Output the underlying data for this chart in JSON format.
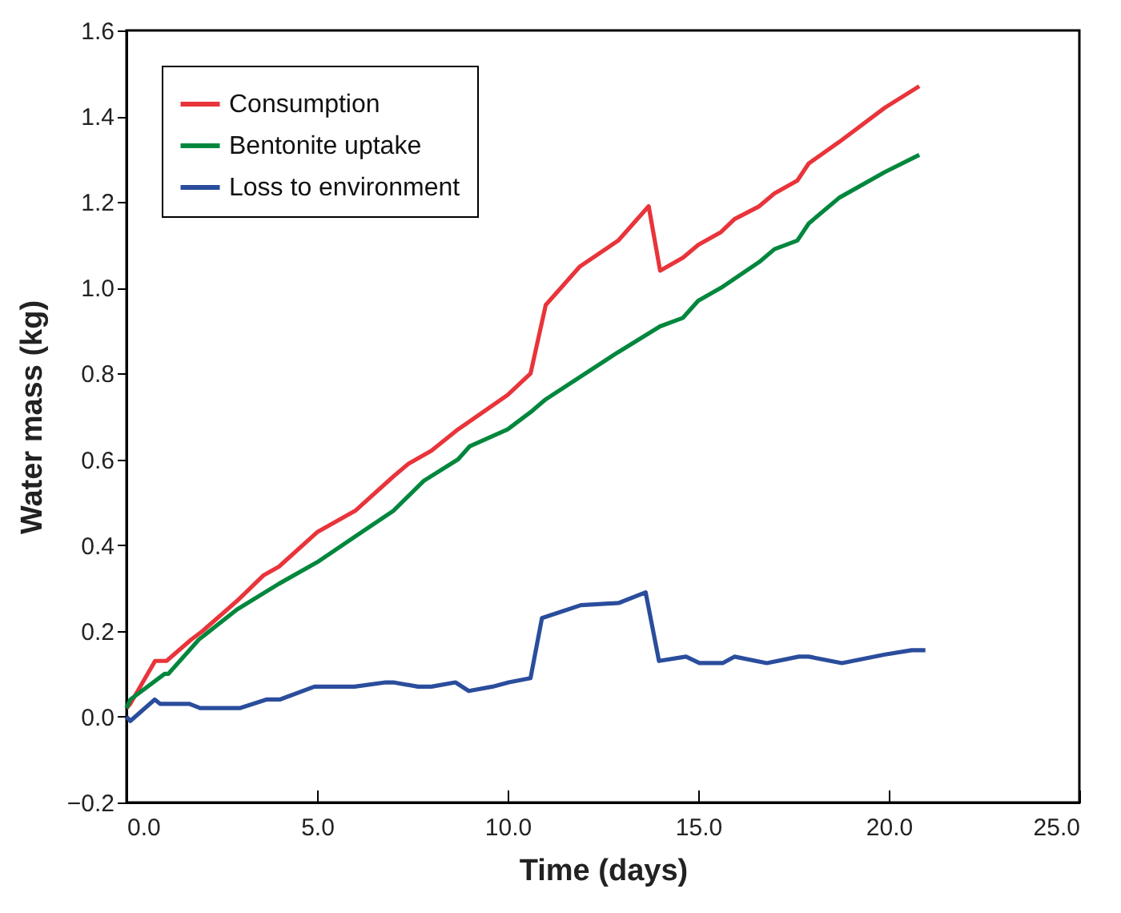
{
  "chart_data": {
    "type": "line",
    "xlabel": "Time (days)",
    "ylabel": "Water mass (kg)",
    "xlim": [
      0,
      25
    ],
    "ylim": [
      -0.2,
      1.6
    ],
    "xticks": [
      {
        "value": 0,
        "label": "0.0"
      },
      {
        "value": 5,
        "label": "5.0"
      },
      {
        "value": 10,
        "label": "10.0"
      },
      {
        "value": 15,
        "label": "15.0"
      },
      {
        "value": 20,
        "label": "20.0"
      },
      {
        "value": 25,
        "label": "25.0"
      }
    ],
    "yticks": [
      {
        "value": -0.2,
        "label": "−0.2"
      },
      {
        "value": 0,
        "label": "0.0"
      },
      {
        "value": 0.2,
        "label": "0.2"
      },
      {
        "value": 0.4,
        "label": "0.4"
      },
      {
        "value": 0.6,
        "label": "0.6"
      },
      {
        "value": 0.8,
        "label": "0.8"
      },
      {
        "value": 1.0,
        "label": "1.0"
      },
      {
        "value": 1.2,
        "label": "1.2"
      },
      {
        "value": 1.4,
        "label": "1.4"
      },
      {
        "value": 1.6,
        "label": "1.6"
      }
    ],
    "grid": false,
    "legend": "top left",
    "line_style": "solid",
    "series": [
      {
        "name": "Consumption",
        "color": "#e8343a",
        "x": [
          0,
          0.1,
          0.75,
          1.05,
          1.7,
          2.0,
          2.9,
          3.6,
          4.0,
          5.0,
          6.0,
          7.0,
          7.4,
          8.0,
          8.7,
          10.0,
          10.6,
          11.0,
          11.9,
          12.9,
          13.7,
          14.0,
          14.6,
          15.0,
          15.6,
          15.95,
          16.6,
          17.0,
          17.6,
          17.9,
          18.7,
          19.9,
          20.8
        ],
        "values": [
          0.02,
          0.03,
          0.13,
          0.13,
          0.18,
          0.2,
          0.27,
          0.33,
          0.35,
          0.43,
          0.48,
          0.56,
          0.59,
          0.62,
          0.67,
          0.75,
          0.8,
          0.96,
          1.05,
          1.11,
          1.19,
          1.04,
          1.07,
          1.1,
          1.13,
          1.16,
          1.19,
          1.22,
          1.25,
          1.29,
          1.34,
          1.42,
          1.47
        ]
      },
      {
        "name": "Bentonite uptake",
        "color": "#00873d",
        "x": [
          0,
          0.1,
          1.0,
          1.1,
          1.9,
          2.9,
          4.0,
          5.0,
          6.0,
          7.0,
          7.8,
          8.7,
          9.0,
          10.0,
          10.6,
          11.0,
          12.9,
          14.0,
          14.6,
          15.0,
          15.6,
          16.6,
          17.0,
          17.6,
          17.9,
          18.7,
          19.9,
          20.8
        ],
        "values": [
          0.02,
          0.04,
          0.1,
          0.1,
          0.18,
          0.25,
          0.31,
          0.36,
          0.42,
          0.48,
          0.55,
          0.6,
          0.63,
          0.67,
          0.71,
          0.74,
          0.85,
          0.91,
          0.93,
          0.97,
          1.0,
          1.06,
          1.09,
          1.11,
          1.15,
          1.21,
          1.27,
          1.31
        ]
      },
      {
        "name": "Loss to environment",
        "color": "#2a4d9c",
        "x": [
          0,
          0.1,
          0.74,
          0.88,
          1.65,
          1.93,
          2.97,
          3.67,
          4.02,
          4.93,
          5.98,
          6.8,
          7.0,
          7.65,
          8.0,
          8.63,
          8.98,
          9.6,
          10.03,
          10.6,
          10.9,
          11.92,
          12.91,
          13.62,
          13.97,
          14.68,
          15.03,
          15.64,
          15.95,
          16.8,
          17.64,
          17.9,
          18.77,
          19.9,
          20.6,
          20.96
        ],
        "values": [
          0.0,
          -0.01,
          0.04,
          0.03,
          0.03,
          0.02,
          0.02,
          0.04,
          0.04,
          0.07,
          0.07,
          0.08,
          0.08,
          0.07,
          0.07,
          0.08,
          0.06,
          0.07,
          0.08,
          0.09,
          0.23,
          0.26,
          0.265,
          0.29,
          0.13,
          0.14,
          0.125,
          0.125,
          0.14,
          0.125,
          0.14,
          0.14,
          0.125,
          0.145,
          0.155,
          0.155
        ]
      }
    ]
  }
}
